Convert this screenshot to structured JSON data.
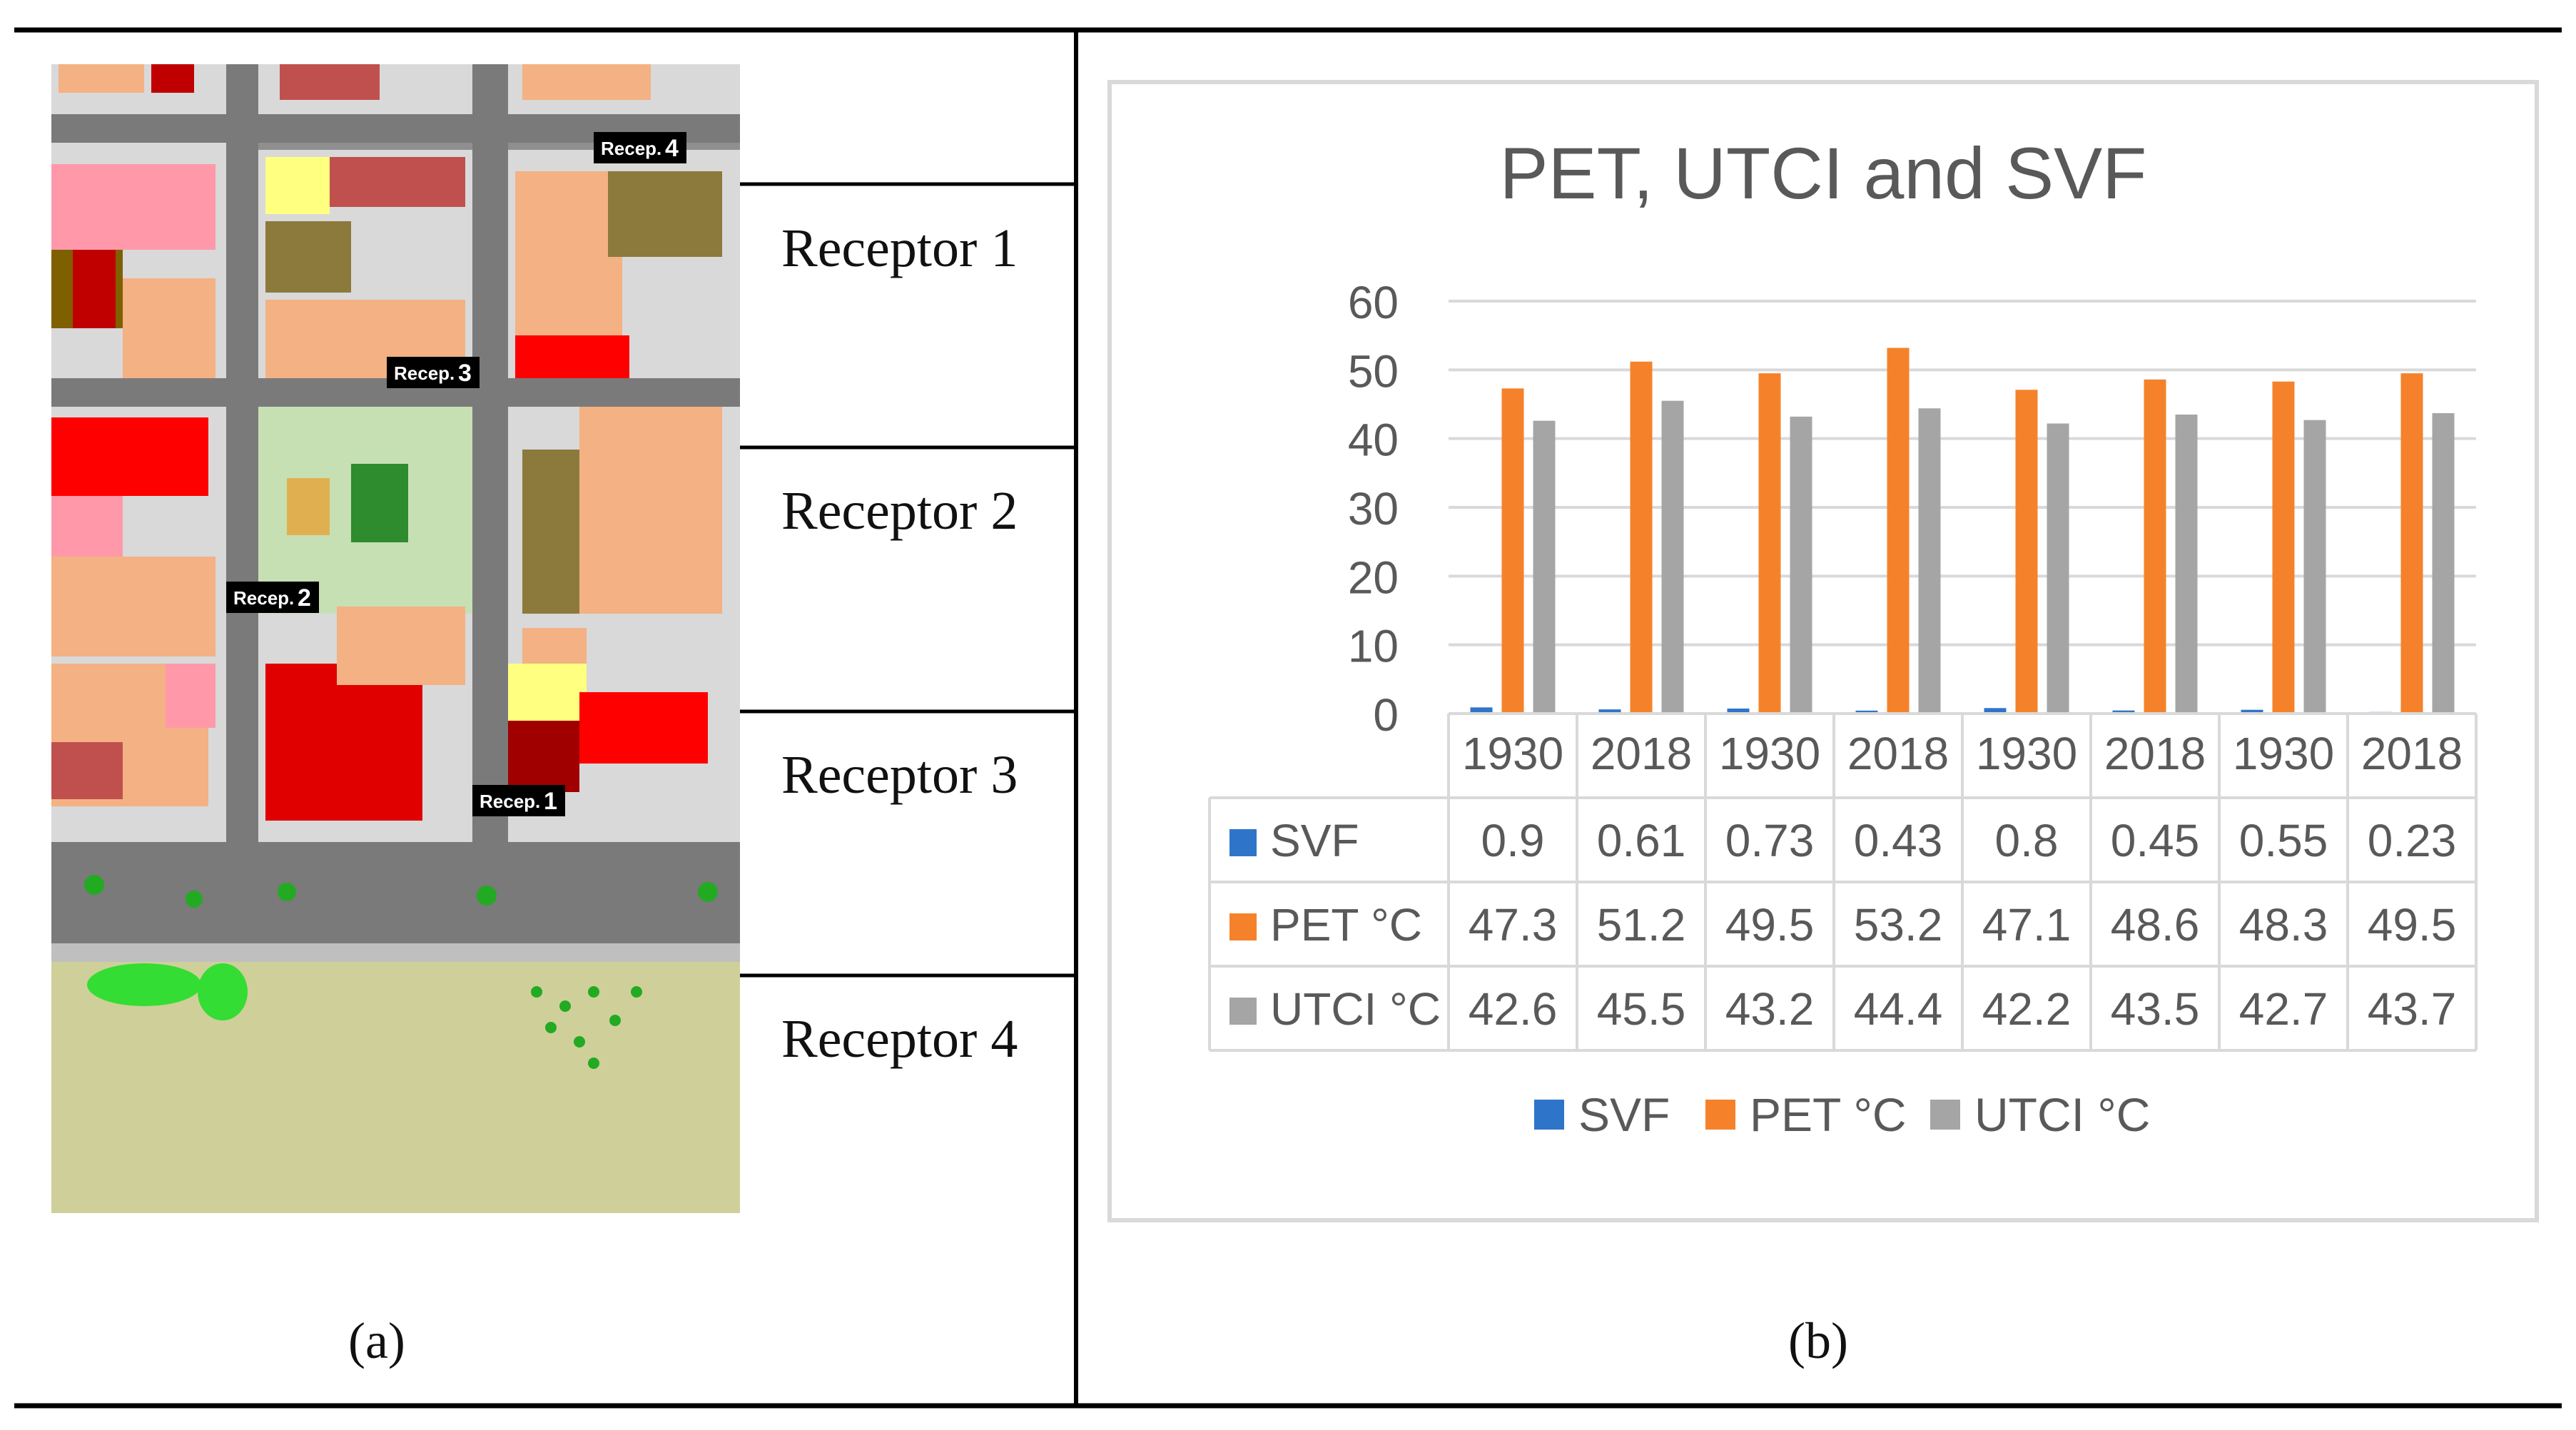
{
  "panel_a": {
    "caption": "(a)",
    "receptors": [
      {
        "label": "Receptor 1",
        "map_tag": "Recep.",
        "map_num": "1"
      },
      {
        "label": "Receptor 2",
        "map_tag": "Recep.",
        "map_num": "2"
      },
      {
        "label": "Receptor 3",
        "map_tag": "Recep.",
        "map_num": "3"
      },
      {
        "label": "Receptor 4",
        "map_tag": "Recep.",
        "map_num": "4"
      }
    ]
  },
  "panel_b": {
    "caption": "(b)"
  },
  "chart_data": {
    "type": "bar",
    "title": "PET, UTCI and SVF",
    "categories": [
      "1930",
      "2018",
      "1930",
      "2018",
      "1930",
      "2018",
      "1930",
      "2018"
    ],
    "series": [
      {
        "name": "SVF",
        "color": "#2E75C9",
        "values": [
          0.9,
          0.61,
          0.73,
          0.43,
          0.8,
          0.45,
          0.55,
          0.23
        ],
        "labels": [
          "0.9",
          "0.61",
          "0.73",
          "0.43",
          "0.8",
          "0.45",
          "0.55",
          "0.23"
        ]
      },
      {
        "name": "PET °C",
        "color": "#F5822A",
        "values": [
          47.3,
          51.2,
          49.5,
          53.2,
          47.1,
          48.6,
          48.3,
          49.5
        ],
        "labels": [
          "47.3",
          "51.2",
          "49.5",
          "53.2",
          "47.1",
          "48.6",
          "48.3",
          "49.5"
        ]
      },
      {
        "name": "UTCI °C",
        "color": "#A5A5A5",
        "values": [
          42.6,
          45.5,
          43.2,
          44.4,
          42.2,
          43.5,
          42.7,
          43.7
        ],
        "labels": [
          "42.6",
          "45.5",
          "43.2",
          "44.4",
          "42.2",
          "43.5",
          "42.7",
          "43.7"
        ]
      }
    ],
    "y_ticks": [
      "0",
      "10",
      "20",
      "30",
      "40",
      "50",
      "60"
    ],
    "ylim": [
      0,
      60
    ],
    "grid": true,
    "legend": "bottom",
    "data_table": true
  }
}
